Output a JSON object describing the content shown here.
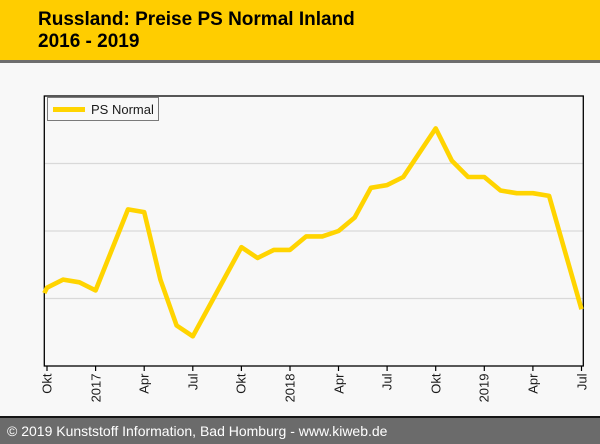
{
  "header": {
    "title_line1": "Russland: Preise PS Normal Inland",
    "title_line2": "2016 - 2019",
    "bg_color": "#ffcd00",
    "text_color": "#000000"
  },
  "legend": {
    "label": "PS Normal",
    "swatch_color": "#ffd400"
  },
  "footer": {
    "text": "© 2019 Kunststoff Information, Bad Homburg - www.kiweb.de",
    "bg_color": "#6b6b6b",
    "text_color": "#ffffff"
  },
  "chart_data": {
    "type": "line",
    "title": "Russland: Preise PS Normal Inland 2016 - 2019",
    "series_name": "PS Normal",
    "x": [
      "Okt 2016",
      "Nov 2016",
      "Dez 2016",
      "Jan 2017",
      "Feb 2017",
      "Mär 2017",
      "Apr 2017",
      "Mai 2017",
      "Jun 2017",
      "Jul 2017",
      "Aug 2017",
      "Sep 2017",
      "Okt 2017",
      "Nov 2017",
      "Dez 2017",
      "Jan 2018",
      "Feb 2018",
      "Mär 2018",
      "Apr 2018",
      "Mai 2018",
      "Jun 2018",
      "Jul 2018",
      "Aug 2018",
      "Sep 2018",
      "Okt 2018",
      "Nov 2018",
      "Dez 2018",
      "Jan 2019",
      "Feb 2019",
      "Mär 2019",
      "Apr 2019",
      "Mai 2019",
      "Jun 2019",
      "Jul 2019"
    ],
    "values": [
      29,
      32,
      31,
      28,
      43,
      58,
      57,
      32,
      15,
      11,
      22,
      33,
      44,
      40,
      43,
      43,
      48,
      48,
      50,
      55,
      66,
      67,
      70,
      79,
      88,
      76,
      70,
      70,
      65,
      64,
      64,
      63,
      42,
      21
    ],
    "values_note": "y-axis shows no tick labels in the chart; values are estimated on a normalized 0-100 scale (0 = plot bottom, 100 = plot top)",
    "clip_start_value": 27,
    "x_tick_labels": [
      "Okt",
      "2017",
      "Apr",
      "Jul",
      "Okt",
      "2018",
      "Apr",
      "Jul",
      "Okt",
      "2019",
      "Apr",
      "Jul"
    ],
    "x_tick_indices": [
      0,
      3,
      6,
      9,
      12,
      15,
      18,
      21,
      24,
      27,
      30,
      33
    ],
    "y_axis": {
      "labels_visible": false,
      "gridline_values": [
        25,
        50,
        75
      ]
    },
    "ylim": [
      0,
      100
    ],
    "grid": "horizontal only",
    "legend_position": "top-left inside plot",
    "line_color": "#ffd400",
    "axis_color": "#000000",
    "gridline_color": "#d9d9d9",
    "plot_bg_color": "#f8f8f8"
  }
}
